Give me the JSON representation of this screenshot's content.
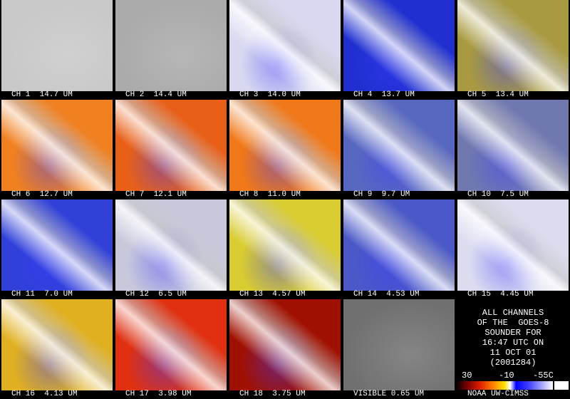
{
  "panels": [
    "CH 1  14.7 UM",
    "CH 2  14.4 UM",
    "CH 3  14.0 UM",
    "CH 4  13.7 UM",
    "CH 5  13.4 UM",
    "CH 6  12.7 UM",
    "CH 7  12.1 UM",
    "CH 8  11.0 UM",
    "CH 9  9.7 UM",
    "CH 10  7.5 UM",
    "CH 11  7.0 UM",
    "CH 12  6.5 UM",
    "CH 13  4.57 UM",
    "CH 14  4.53 UM",
    "CH 15  4.45 UM",
    "CH 16  4.13 UM",
    "CH 17  3.98 UM",
    "CH 18  3.75 UM",
    "VISIBLE 0.65 UM"
  ],
  "info": {
    "lines": [
      "ALL CHANNELS",
      "OF THE  GOES-8",
      "SOUNDER FOR",
      "16:47 UTC ON",
      "11 OCT 01",
      "(2001284)"
    ],
    "colorbar": [
      "30",
      "-10",
      "-55C"
    ],
    "credit": "NOAA UW-CIMSS"
  }
}
